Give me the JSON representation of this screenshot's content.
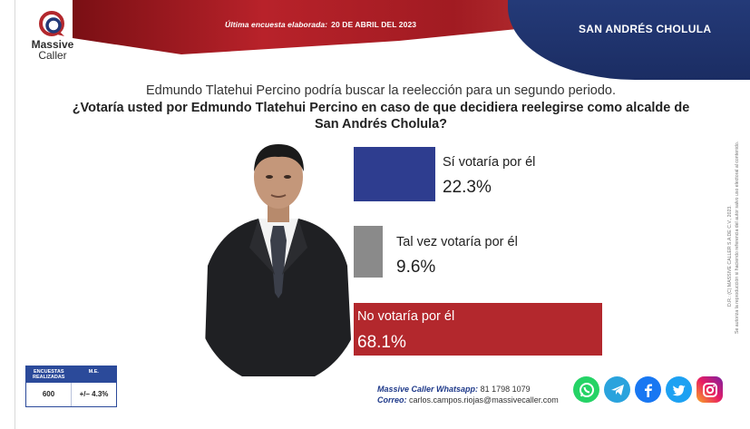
{
  "header": {
    "date_prefix": "Última encuesta elaborada:",
    "date_value": "20 DE ABRIL DEL 2023",
    "region": "SAN ANDRÉS CHOLULA"
  },
  "logo": {
    "name": "Massive",
    "sub": "Caller"
  },
  "question": {
    "intro": "Edmundo Tlatehui Percino podría buscar la reelección para un segundo periodo.",
    "main": "¿Votaría usted por Edmundo Tlatehui Percino en caso de que decidiera reelegirse como alcalde de San Andrés Cholula?"
  },
  "chart_data": {
    "type": "bar",
    "categories": [
      "Sí votaría por él",
      "Tal vez votaría por él",
      "No votaría por él"
    ],
    "values": [
      22.3,
      9.6,
      68.1
    ],
    "value_labels": [
      "22.3%",
      "9.6%",
      "68.1%"
    ],
    "colors": [
      "#2e3d8f",
      "#8a8a8a",
      "#b3282d"
    ],
    "title": "",
    "xlabel": "",
    "ylabel": ""
  },
  "stats": {
    "col1_header": "ENCUESTAS REALIZADAS",
    "col2_header": "M.E.",
    "col1_value": "600",
    "col2_value": "+/– 4.3%"
  },
  "contact": {
    "whatsapp_label": "Massive Caller Whatsapp:",
    "whatsapp_value": "81 1798 1079",
    "email_label": "Correo:",
    "email_value": "carlos.campos.riojas@massivecaller.com"
  },
  "socials": [
    "whatsapp-icon",
    "telegram-icon",
    "facebook-icon",
    "twitter-icon",
    "instagram-icon"
  ],
  "legal": {
    "line1": "D.R.: (C) MASSIVE CALLER S.A DE C.V., 2023.",
    "line2": "Se autoriza la reproducción si haciendo referencia del autor salvo uso electoral al contenido."
  }
}
